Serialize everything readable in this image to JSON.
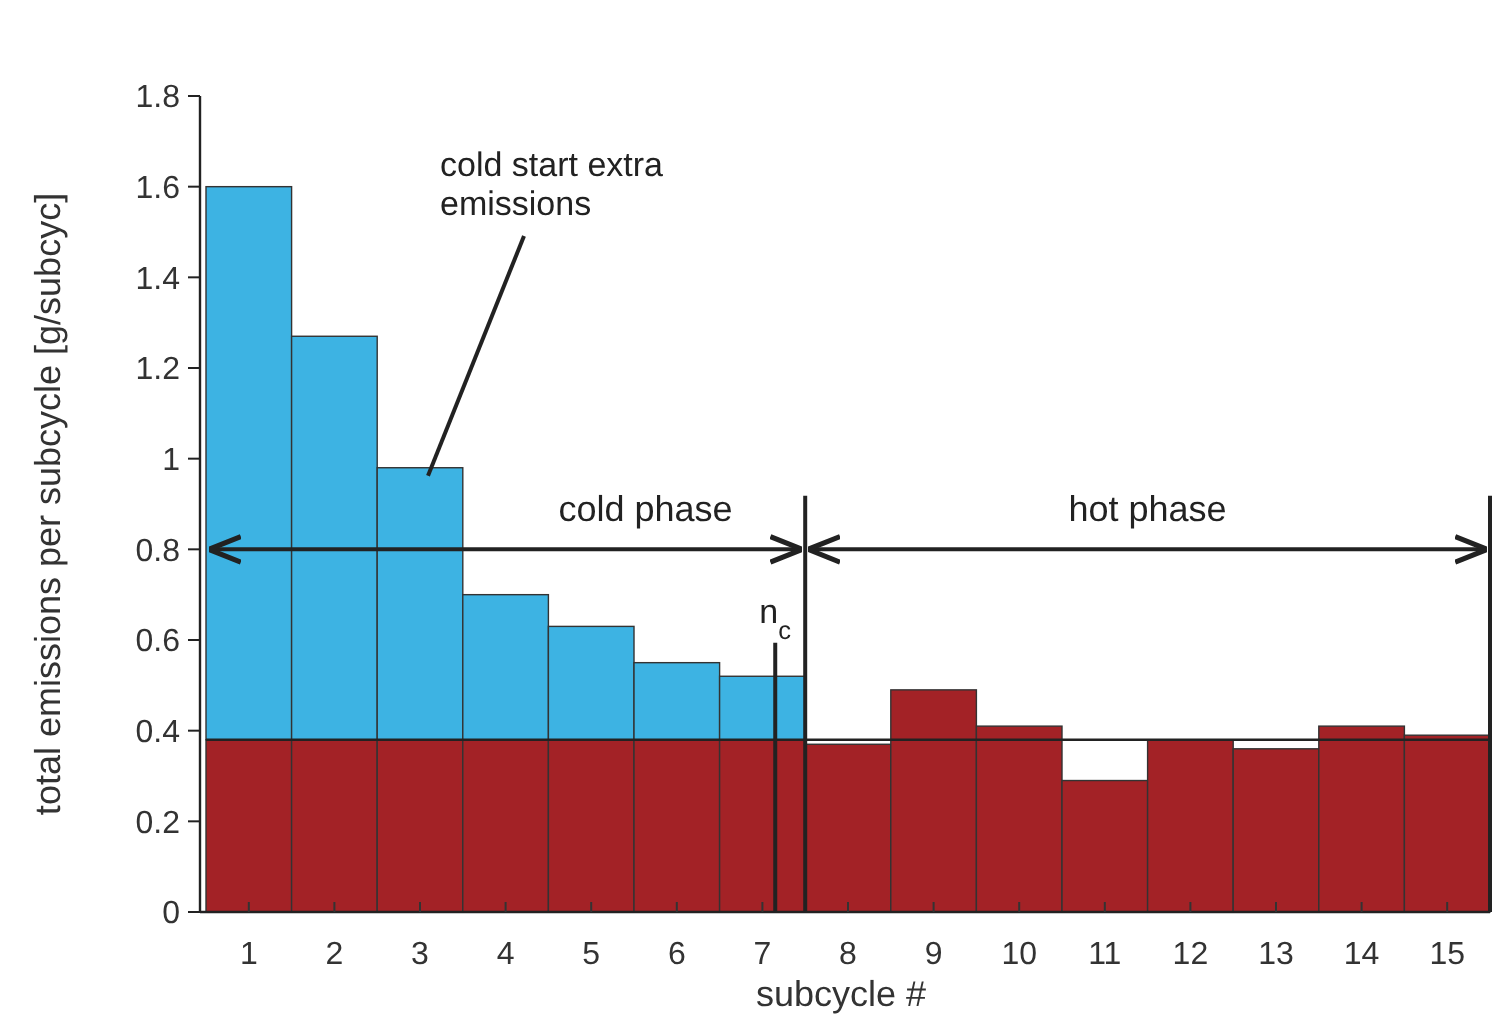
{
  "chart_data": {
    "type": "bar",
    "stacked": true,
    "xlabel": "subcycle #",
    "ylabel": "total emissions per subcycle [g/subcyc]",
    "x": [
      1,
      2,
      3,
      4,
      5,
      6,
      7,
      8,
      9,
      10,
      11,
      12,
      13,
      14,
      15
    ],
    "xlim": [
      0.5,
      15.5
    ],
    "xticks": [
      1,
      2,
      3,
      4,
      5,
      6,
      7,
      8,
      9,
      10,
      11,
      12,
      13,
      14,
      15
    ],
    "ylim": [
      0,
      1.8
    ],
    "yticks": [
      0,
      0.2,
      0.4,
      0.6,
      0.8,
      1,
      1.2,
      1.4,
      1.6,
      1.8
    ],
    "series": [
      {
        "color": "#a32226",
        "values": [
          0.38,
          0.38,
          0.38,
          0.38,
          0.38,
          0.38,
          0.38,
          0.37,
          0.49,
          0.41,
          0.29,
          0.38,
          0.36,
          0.41,
          0.39
        ]
      },
      {
        "color": "#3db3e3",
        "values": [
          1.22,
          0.89,
          0.6,
          0.32,
          0.25,
          0.17,
          0.14,
          null,
          null,
          null,
          null,
          null,
          null,
          null,
          null
        ]
      }
    ],
    "ref_lines": [
      {
        "axis": "y",
        "value": 0.38
      },
      {
        "axis": "x",
        "value": 7.5
      },
      {
        "axis": "x",
        "value": 15.5
      },
      {
        "axis": "x",
        "value": 7.15,
        "label": "n$_{c}$"
      }
    ],
    "annotations": [
      {
        "text": "cold start extra emissions",
        "x": 3,
        "y": 0.98
      },
      "cold phase",
      "hot phase"
    ]
  }
}
